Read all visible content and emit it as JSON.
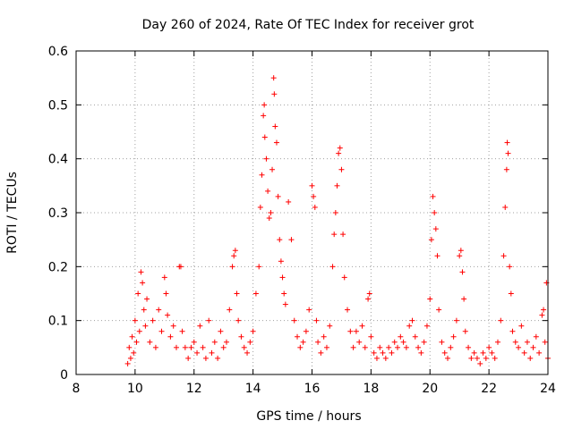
{
  "chart_data": {
    "type": "scatter",
    "title": "Day 260 of 2024, Rate Of TEC Index for receiver grot",
    "xlabel": "GPS time / hours",
    "ylabel": "ROTI / TECUs",
    "xlim": [
      8,
      24
    ],
    "ylim": [
      0,
      0.6
    ],
    "x_ticks": [
      8,
      10,
      12,
      14,
      16,
      18,
      20,
      22,
      24
    ],
    "y_ticks": [
      0,
      0.1,
      0.2,
      0.3,
      0.4,
      0.5,
      0.6
    ],
    "x_tick_labels": [
      "8",
      "10",
      "12",
      "14",
      "16",
      "18",
      "20",
      "22",
      "24"
    ],
    "y_tick_labels": [
      "0",
      "0.1",
      "0.2",
      "0.3",
      "0.4",
      "0.5",
      "0.6"
    ],
    "grid": true,
    "marker": "+",
    "series": [
      {
        "name": "ROTI",
        "color": "#ff0000",
        "points": [
          [
            9.75,
            0.02
          ],
          [
            9.8,
            0.05
          ],
          [
            9.85,
            0.03
          ],
          [
            9.9,
            0.07
          ],
          [
            9.95,
            0.04
          ],
          [
            10.0,
            0.1
          ],
          [
            10.05,
            0.06
          ],
          [
            10.1,
            0.15
          ],
          [
            10.15,
            0.08
          ],
          [
            10.2,
            0.19
          ],
          [
            10.25,
            0.17
          ],
          [
            10.3,
            0.12
          ],
          [
            10.35,
            0.09
          ],
          [
            10.4,
            0.14
          ],
          [
            10.5,
            0.06
          ],
          [
            10.6,
            0.1
          ],
          [
            10.7,
            0.05
          ],
          [
            10.8,
            0.12
          ],
          [
            10.9,
            0.08
          ],
          [
            11.0,
            0.18
          ],
          [
            11.05,
            0.15
          ],
          [
            11.1,
            0.11
          ],
          [
            11.2,
            0.07
          ],
          [
            11.3,
            0.09
          ],
          [
            11.4,
            0.05
          ],
          [
            11.5,
            0.2
          ],
          [
            11.55,
            0.2
          ],
          [
            11.6,
            0.08
          ],
          [
            11.7,
            0.05
          ],
          [
            11.8,
            0.03
          ],
          [
            11.9,
            0.05
          ],
          [
            12.0,
            0.06
          ],
          [
            12.1,
            0.04
          ],
          [
            12.2,
            0.09
          ],
          [
            12.3,
            0.05
          ],
          [
            12.4,
            0.03
          ],
          [
            12.5,
            0.1
          ],
          [
            12.6,
            0.04
          ],
          [
            12.7,
            0.06
          ],
          [
            12.8,
            0.03
          ],
          [
            12.9,
            0.08
          ],
          [
            13.0,
            0.05
          ],
          [
            13.1,
            0.06
          ],
          [
            13.2,
            0.12
          ],
          [
            13.3,
            0.2
          ],
          [
            13.35,
            0.22
          ],
          [
            13.4,
            0.23
          ],
          [
            13.45,
            0.15
          ],
          [
            13.5,
            0.1
          ],
          [
            13.6,
            0.07
          ],
          [
            13.7,
            0.05
          ],
          [
            13.8,
            0.04
          ],
          [
            13.9,
            0.06
          ],
          [
            14.0,
            0.08
          ],
          [
            14.1,
            0.15
          ],
          [
            14.2,
            0.2
          ],
          [
            14.25,
            0.31
          ],
          [
            14.3,
            0.37
          ],
          [
            14.35,
            0.48
          ],
          [
            14.38,
            0.5
          ],
          [
            14.4,
            0.44
          ],
          [
            14.45,
            0.4
          ],
          [
            14.5,
            0.34
          ],
          [
            14.55,
            0.29
          ],
          [
            14.6,
            0.3
          ],
          [
            14.65,
            0.38
          ],
          [
            14.7,
            0.55
          ],
          [
            14.72,
            0.52
          ],
          [
            14.75,
            0.46
          ],
          [
            14.8,
            0.43
          ],
          [
            14.85,
            0.33
          ],
          [
            14.9,
            0.25
          ],
          [
            14.95,
            0.21
          ],
          [
            15.0,
            0.18
          ],
          [
            15.05,
            0.15
          ],
          [
            15.1,
            0.13
          ],
          [
            15.2,
            0.32
          ],
          [
            15.3,
            0.25
          ],
          [
            15.4,
            0.1
          ],
          [
            15.5,
            0.07
          ],
          [
            15.6,
            0.05
          ],
          [
            15.7,
            0.06
          ],
          [
            15.8,
            0.08
          ],
          [
            15.9,
            0.12
          ],
          [
            16.0,
            0.35
          ],
          [
            16.05,
            0.33
          ],
          [
            16.1,
            0.31
          ],
          [
            16.15,
            0.1
          ],
          [
            16.2,
            0.06
          ],
          [
            16.3,
            0.04
          ],
          [
            16.4,
            0.07
          ],
          [
            16.5,
            0.05
          ],
          [
            16.6,
            0.09
          ],
          [
            16.7,
            0.2
          ],
          [
            16.75,
            0.26
          ],
          [
            16.8,
            0.3
          ],
          [
            16.85,
            0.35
          ],
          [
            16.9,
            0.41
          ],
          [
            16.95,
            0.42
          ],
          [
            17.0,
            0.38
          ],
          [
            17.05,
            0.26
          ],
          [
            17.1,
            0.18
          ],
          [
            17.2,
            0.12
          ],
          [
            17.3,
            0.08
          ],
          [
            17.4,
            0.05
          ],
          [
            17.5,
            0.08
          ],
          [
            17.6,
            0.06
          ],
          [
            17.7,
            0.09
          ],
          [
            17.8,
            0.05
          ],
          [
            17.9,
            0.14
          ],
          [
            17.95,
            0.15
          ],
          [
            18.0,
            0.07
          ],
          [
            18.1,
            0.04
          ],
          [
            18.2,
            0.03
          ],
          [
            18.3,
            0.05
          ],
          [
            18.4,
            0.04
          ],
          [
            18.5,
            0.03
          ],
          [
            18.6,
            0.05
          ],
          [
            18.7,
            0.04
          ],
          [
            18.8,
            0.06
          ],
          [
            18.9,
            0.05
          ],
          [
            19.0,
            0.07
          ],
          [
            19.1,
            0.06
          ],
          [
            19.2,
            0.05
          ],
          [
            19.3,
            0.09
          ],
          [
            19.4,
            0.1
          ],
          [
            19.5,
            0.07
          ],
          [
            19.6,
            0.05
          ],
          [
            19.7,
            0.04
          ],
          [
            19.8,
            0.06
          ],
          [
            19.9,
            0.09
          ],
          [
            20.0,
            0.14
          ],
          [
            20.05,
            0.25
          ],
          [
            20.1,
            0.33
          ],
          [
            20.15,
            0.3
          ],
          [
            20.2,
            0.27
          ],
          [
            20.25,
            0.22
          ],
          [
            20.3,
            0.12
          ],
          [
            20.4,
            0.06
          ],
          [
            20.5,
            0.04
          ],
          [
            20.6,
            0.03
          ],
          [
            20.7,
            0.05
          ],
          [
            20.8,
            0.07
          ],
          [
            20.9,
            0.1
          ],
          [
            21.0,
            0.22
          ],
          [
            21.05,
            0.23
          ],
          [
            21.1,
            0.19
          ],
          [
            21.15,
            0.14
          ],
          [
            21.2,
            0.08
          ],
          [
            21.3,
            0.05
          ],
          [
            21.4,
            0.03
          ],
          [
            21.5,
            0.04
          ],
          [
            21.6,
            0.03
          ],
          [
            21.7,
            0.02
          ],
          [
            21.8,
            0.04
          ],
          [
            21.9,
            0.03
          ],
          [
            22.0,
            0.05
          ],
          [
            22.1,
            0.04
          ],
          [
            22.2,
            0.03
          ],
          [
            22.3,
            0.06
          ],
          [
            22.4,
            0.1
          ],
          [
            22.5,
            0.22
          ],
          [
            22.55,
            0.31
          ],
          [
            22.6,
            0.38
          ],
          [
            22.62,
            0.43
          ],
          [
            22.65,
            0.41
          ],
          [
            22.7,
            0.2
          ],
          [
            22.75,
            0.15
          ],
          [
            22.8,
            0.08
          ],
          [
            22.9,
            0.06
          ],
          [
            23.0,
            0.05
          ],
          [
            23.1,
            0.09
          ],
          [
            23.2,
            0.04
          ],
          [
            23.3,
            0.06
          ],
          [
            23.4,
            0.03
          ],
          [
            23.5,
            0.05
          ],
          [
            23.6,
            0.07
          ],
          [
            23.7,
            0.04
          ],
          [
            23.8,
            0.11
          ],
          [
            23.85,
            0.12
          ],
          [
            23.9,
            0.06
          ],
          [
            23.95,
            0.17
          ],
          [
            24.0,
            0.03
          ]
        ]
      }
    ]
  }
}
